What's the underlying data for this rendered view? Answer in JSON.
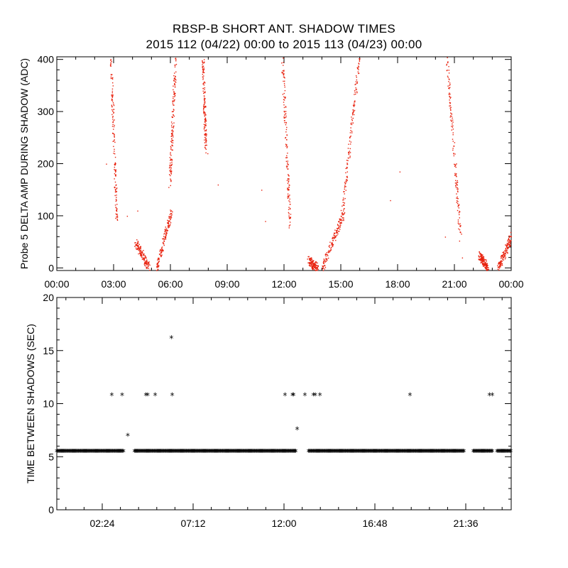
{
  "title": "RBSP-B SHORT ANT. SHADOW TIMES",
  "subtitle": "2015 112 (04/22) 00:00 to 2015 113 (04/23) 00:00",
  "colors": {
    "top_series": "#e8200c",
    "bottom_series": "#000000",
    "axes": "#000000"
  },
  "chart_data": [
    {
      "type": "scatter",
      "title": "",
      "xlabel": "",
      "ylabel": "Probe 5 DELTA AMP DURING SHADOW (ADC)",
      "xlim": [
        0,
        24
      ],
      "ylim": [
        -5,
        405
      ],
      "x_tick_values": [
        0,
        3,
        6,
        9,
        12,
        15,
        18,
        21,
        24
      ],
      "x_tick_labels": [
        "00:00",
        "03:00",
        "06:00",
        "09:00",
        "12:00",
        "15:00",
        "18:00",
        "21:00",
        "00:00"
      ],
      "y_tick_values": [
        0,
        100,
        200,
        300,
        400
      ],
      "y_tick_labels": [
        "0",
        "100",
        "200",
        "300",
        "400"
      ],
      "x_unit": "hours",
      "segments": [
        {
          "x": [
            2.85,
            3.15
          ],
          "y": [
            400,
            90
          ]
        },
        {
          "x": [
            4.15,
            4.85
          ],
          "y": [
            50,
            0
          ]
        },
        {
          "x": [
            5.25,
            6.05
          ],
          "y": [
            0,
            110
          ]
        },
        {
          "x": [
            5.95,
            6.25
          ],
          "y": [
            160,
            400
          ]
        },
        {
          "x": [
            7.7,
            7.85
          ],
          "y": [
            400,
            230
          ]
        },
        {
          "x": [
            11.9,
            12.3
          ],
          "y": [
            400,
            80
          ]
        },
        {
          "x": [
            13.25,
            13.75
          ],
          "y": [
            15,
            0
          ]
        },
        {
          "x": [
            14.0,
            15.2
          ],
          "y": [
            0,
            110
          ]
        },
        {
          "x": [
            15.0,
            15.95
          ],
          "y": [
            90,
            400
          ]
        },
        {
          "x": [
            20.6,
            21.3
          ],
          "y": [
            400,
            60
          ]
        },
        {
          "x": [
            22.3,
            22.75
          ],
          "y": [
            25,
            0
          ]
        },
        {
          "x": [
            23.3,
            24.0
          ],
          "y": [
            0,
            60
          ]
        }
      ],
      "isolated_points": [
        {
          "x": 2.6,
          "y": 200
        },
        {
          "x": 3.7,
          "y": 100
        },
        {
          "x": 4.25,
          "y": 110
        },
        {
          "x": 7.95,
          "y": 220
        },
        {
          "x": 8.5,
          "y": 160
        },
        {
          "x": 10.8,
          "y": 150
        },
        {
          "x": 11.0,
          "y": 90
        },
        {
          "x": 17.6,
          "y": 130
        },
        {
          "x": 18.1,
          "y": 185
        },
        {
          "x": 20.5,
          "y": 60
        },
        {
          "x": 21.4,
          "y": 20
        }
      ],
      "grid": false
    },
    {
      "type": "scatter",
      "title": "",
      "xlabel": "",
      "ylabel": "TIME BETWEEN SHADOWS (SEC)",
      "xlim": [
        0,
        24
      ],
      "ylim": [
        0,
        20
      ],
      "x_tick_values": [
        2.4,
        7.2,
        12.0,
        16.8,
        21.6
      ],
      "x_tick_labels": [
        "02:24",
        "07:12",
        "12:00",
        "16:48",
        "21:36"
      ],
      "y_tick_values": [
        0,
        5,
        10,
        15,
        20
      ],
      "y_tick_labels": [
        "0",
        "5",
        "10",
        "15",
        "20"
      ],
      "baseline_value": 5.5,
      "baseline_ranges": [
        [
          0.0,
          3.55
        ],
        [
          4.1,
          12.65
        ],
        [
          13.3,
          21.5
        ],
        [
          22.0,
          23.0
        ],
        [
          23.25,
          24.0
        ]
      ],
      "points": [
        {
          "x": 2.9,
          "y": 10.8
        },
        {
          "x": 3.45,
          "y": 10.8
        },
        {
          "x": 3.75,
          "y": 7.0
        },
        {
          "x": 4.7,
          "y": 10.8
        },
        {
          "x": 4.8,
          "y": 10.8
        },
        {
          "x": 5.2,
          "y": 10.8
        },
        {
          "x": 6.05,
          "y": 16.2
        },
        {
          "x": 6.1,
          "y": 10.8
        },
        {
          "x": 12.05,
          "y": 10.8
        },
        {
          "x": 12.45,
          "y": 10.8
        },
        {
          "x": 12.5,
          "y": 10.8
        },
        {
          "x": 12.7,
          "y": 7.6
        },
        {
          "x": 13.1,
          "y": 10.8
        },
        {
          "x": 13.55,
          "y": 10.8
        },
        {
          "x": 13.65,
          "y": 10.8
        },
        {
          "x": 13.9,
          "y": 10.8
        },
        {
          "x": 18.65,
          "y": 10.8
        },
        {
          "x": 22.85,
          "y": 10.8
        },
        {
          "x": 23.0,
          "y": 10.8
        }
      ],
      "grid": false
    }
  ]
}
